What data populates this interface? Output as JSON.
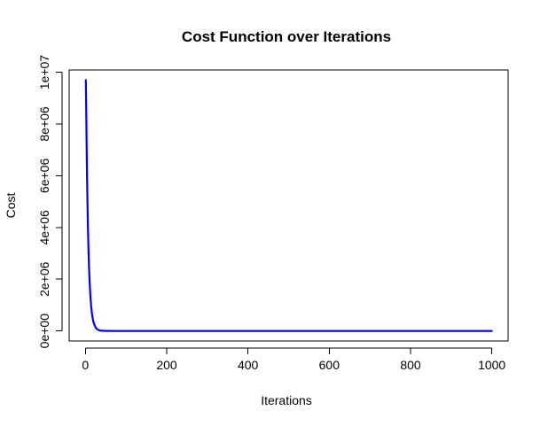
{
  "chart_data": {
    "type": "line",
    "title": "Cost Function over Iterations",
    "xlabel": "Iterations",
    "ylabel": "Cost",
    "xlim": [
      -40,
      1040
    ],
    "ylim": [
      -388000,
      10088000
    ],
    "x_ticks": [
      0,
      200,
      400,
      600,
      800,
      1000
    ],
    "x_tick_labels": [
      "0",
      "200",
      "400",
      "600",
      "800",
      "1000"
    ],
    "y_ticks": [
      0,
      2000000,
      4000000,
      6000000,
      8000000,
      10000000
    ],
    "y_tick_labels": [
      "0e+00",
      "2e+06",
      "4e+06",
      "6e+06",
      "8e+06",
      "1e+07"
    ],
    "grid": false,
    "legend": "none",
    "series": [
      {
        "color": "#0000ff",
        "x": [
          1,
          2,
          3,
          4,
          5,
          6,
          7,
          8,
          9,
          10,
          12,
          14,
          16,
          18,
          20,
          25,
          30,
          35,
          40,
          50,
          60,
          80,
          100,
          150,
          200,
          300,
          400,
          500,
          600,
          700,
          800,
          900,
          1000
        ],
        "y": [
          9700000,
          8550000,
          7130000,
          5960000,
          4980000,
          4150000,
          3460000,
          2890000,
          2410000,
          2010000,
          1400000,
          974000,
          677000,
          471000,
          328000,
          130000,
          52000,
          21000,
          9000,
          1500,
          300,
          20,
          0,
          0,
          0,
          0,
          0,
          0,
          0,
          0,
          0,
          0,
          0
        ]
      }
    ]
  }
}
